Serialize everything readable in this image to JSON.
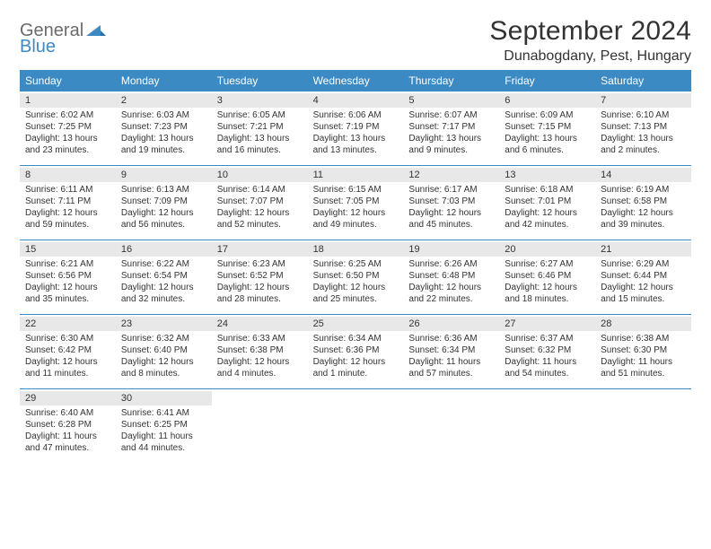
{
  "logo": {
    "line1": "General",
    "line2": "Blue"
  },
  "title": "September 2024",
  "subtitle": "Dunabogdany, Pest, Hungary",
  "colors": {
    "header_bg": "#3b8ac4",
    "header_text": "#ffffff",
    "daynum_bg": "#e8e8e8",
    "text": "#333333",
    "rule": "#3b8ac4",
    "logo_gray": "#6b6b6b",
    "logo_blue": "#3b8ac4"
  },
  "weekdays": [
    "Sunday",
    "Monday",
    "Tuesday",
    "Wednesday",
    "Thursday",
    "Friday",
    "Saturday"
  ],
  "weeks": [
    [
      {
        "n": "1",
        "sr": "6:02 AM",
        "ss": "7:25 PM",
        "dl": "13 hours and 23 minutes."
      },
      {
        "n": "2",
        "sr": "6:03 AM",
        "ss": "7:23 PM",
        "dl": "13 hours and 19 minutes."
      },
      {
        "n": "3",
        "sr": "6:05 AM",
        "ss": "7:21 PM",
        "dl": "13 hours and 16 minutes."
      },
      {
        "n": "4",
        "sr": "6:06 AM",
        "ss": "7:19 PM",
        "dl": "13 hours and 13 minutes."
      },
      {
        "n": "5",
        "sr": "6:07 AM",
        "ss": "7:17 PM",
        "dl": "13 hours and 9 minutes."
      },
      {
        "n": "6",
        "sr": "6:09 AM",
        "ss": "7:15 PM",
        "dl": "13 hours and 6 minutes."
      },
      {
        "n": "7",
        "sr": "6:10 AM",
        "ss": "7:13 PM",
        "dl": "13 hours and 2 minutes."
      }
    ],
    [
      {
        "n": "8",
        "sr": "6:11 AM",
        "ss": "7:11 PM",
        "dl": "12 hours and 59 minutes."
      },
      {
        "n": "9",
        "sr": "6:13 AM",
        "ss": "7:09 PM",
        "dl": "12 hours and 56 minutes."
      },
      {
        "n": "10",
        "sr": "6:14 AM",
        "ss": "7:07 PM",
        "dl": "12 hours and 52 minutes."
      },
      {
        "n": "11",
        "sr": "6:15 AM",
        "ss": "7:05 PM",
        "dl": "12 hours and 49 minutes."
      },
      {
        "n": "12",
        "sr": "6:17 AM",
        "ss": "7:03 PM",
        "dl": "12 hours and 45 minutes."
      },
      {
        "n": "13",
        "sr": "6:18 AM",
        "ss": "7:01 PM",
        "dl": "12 hours and 42 minutes."
      },
      {
        "n": "14",
        "sr": "6:19 AM",
        "ss": "6:58 PM",
        "dl": "12 hours and 39 minutes."
      }
    ],
    [
      {
        "n": "15",
        "sr": "6:21 AM",
        "ss": "6:56 PM",
        "dl": "12 hours and 35 minutes."
      },
      {
        "n": "16",
        "sr": "6:22 AM",
        "ss": "6:54 PM",
        "dl": "12 hours and 32 minutes."
      },
      {
        "n": "17",
        "sr": "6:23 AM",
        "ss": "6:52 PM",
        "dl": "12 hours and 28 minutes."
      },
      {
        "n": "18",
        "sr": "6:25 AM",
        "ss": "6:50 PM",
        "dl": "12 hours and 25 minutes."
      },
      {
        "n": "19",
        "sr": "6:26 AM",
        "ss": "6:48 PM",
        "dl": "12 hours and 22 minutes."
      },
      {
        "n": "20",
        "sr": "6:27 AM",
        "ss": "6:46 PM",
        "dl": "12 hours and 18 minutes."
      },
      {
        "n": "21",
        "sr": "6:29 AM",
        "ss": "6:44 PM",
        "dl": "12 hours and 15 minutes."
      }
    ],
    [
      {
        "n": "22",
        "sr": "6:30 AM",
        "ss": "6:42 PM",
        "dl": "12 hours and 11 minutes."
      },
      {
        "n": "23",
        "sr": "6:32 AM",
        "ss": "6:40 PM",
        "dl": "12 hours and 8 minutes."
      },
      {
        "n": "24",
        "sr": "6:33 AM",
        "ss": "6:38 PM",
        "dl": "12 hours and 4 minutes."
      },
      {
        "n": "25",
        "sr": "6:34 AM",
        "ss": "6:36 PM",
        "dl": "12 hours and 1 minute."
      },
      {
        "n": "26",
        "sr": "6:36 AM",
        "ss": "6:34 PM",
        "dl": "11 hours and 57 minutes."
      },
      {
        "n": "27",
        "sr": "6:37 AM",
        "ss": "6:32 PM",
        "dl": "11 hours and 54 minutes."
      },
      {
        "n": "28",
        "sr": "6:38 AM",
        "ss": "6:30 PM",
        "dl": "11 hours and 51 minutes."
      }
    ],
    [
      {
        "n": "29",
        "sr": "6:40 AM",
        "ss": "6:28 PM",
        "dl": "11 hours and 47 minutes."
      },
      {
        "n": "30",
        "sr": "6:41 AM",
        "ss": "6:25 PM",
        "dl": "11 hours and 44 minutes."
      },
      null,
      null,
      null,
      null,
      null
    ]
  ],
  "labels": {
    "sunrise": "Sunrise: ",
    "sunset": "Sunset: ",
    "daylight": "Daylight: "
  }
}
